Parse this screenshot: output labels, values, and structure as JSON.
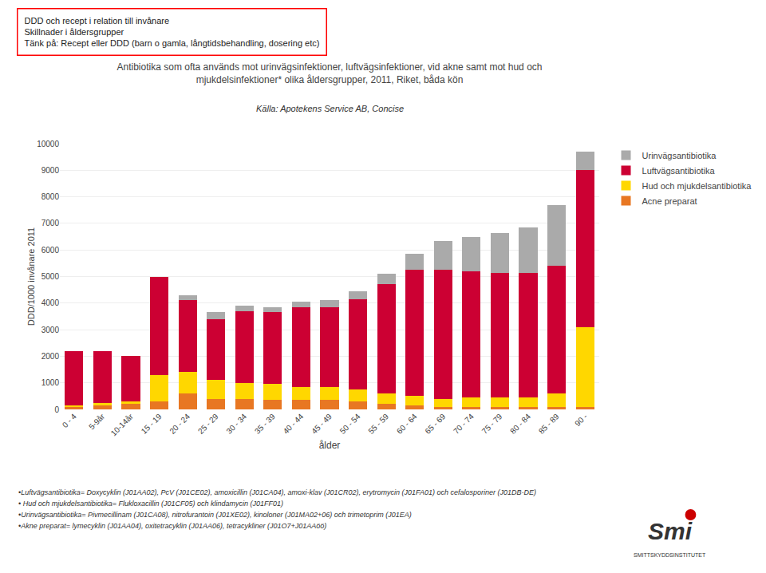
{
  "chart_data": {
    "type": "bar",
    "stacked": true,
    "title": [
      "Antibiotika som ofta används mot urinvägsinfektioner, luftvägsinfektioner, vid akne samt mot hud och",
      "mjukdelsinfektioner* olika åldersgrupper, 2011, Riket, båda kön"
    ],
    "subtitle": "Källa: Apotekens Service AB, Concise",
    "xlabel": "ålder",
    "ylabel": "DDD/1000 invånare 2011",
    "categories": [
      "0 - 4",
      "5-9år",
      "10-14år",
      "15 - 19",
      "20 - 24",
      "25 - 29",
      "30 - 34",
      "35 - 39",
      "40 - 44",
      "45 - 49",
      "50 - 54",
      "55 - 59",
      "60 - 64",
      "65 - 69",
      "70 - 74",
      "75 - 79",
      "80 - 84",
      "85 - 89",
      "90 -"
    ],
    "series": [
      {
        "name": "Acne preparat",
        "color": "#E87722",
        "values": [
          100,
          150,
          200,
          300,
          600,
          400,
          400,
          350,
          350,
          350,
          300,
          200,
          150,
          100,
          100,
          100,
          100,
          100,
          100
        ]
      },
      {
        "name": "Hud och mjukdelsantibiotika",
        "color": "#FFD700",
        "values": [
          50,
          100,
          100,
          1000,
          800,
          700,
          600,
          600,
          500,
          500,
          450,
          400,
          350,
          300,
          350,
          350,
          350,
          500,
          3000
        ]
      },
      {
        "name": "Luftvägsantibiotika",
        "color": "#CC0033",
        "values": [
          2050,
          1950,
          1700,
          3700,
          2700,
          2300,
          2700,
          2700,
          3000,
          3000,
          3400,
          4100,
          4750,
          4850,
          4750,
          4700,
          4700,
          4800,
          5900
        ]
      },
      {
        "name": "Urinvägsantibiotika",
        "color": "#AAAAAA",
        "values": [
          0,
          0,
          0,
          0,
          200,
          250,
          200,
          200,
          200,
          250,
          300,
          400,
          600,
          1100,
          1300,
          1500,
          1700,
          2300,
          700
        ]
      }
    ],
    "ylim": [
      0,
      10000
    ],
    "yticks": [
      0,
      1000,
      2000,
      3000,
      4000,
      5000,
      6000,
      7000,
      8000,
      9000,
      10000
    ],
    "grid": true,
    "legend": "upper right",
    "annotations": [
      "DDD och recept i relation till invånare",
      "Skillnader i åldersgrupper",
      "Tänk på: Recept eller DDD (barn o gamla, långtidsbehandling, dosering etc)",
      "•Luftvägsantibiotika= Doxycyklin (J01AA02), PcV (J01CE02), amoxicillin (J01CA04), amoxi-klav (J01CR02), erytromycin (J01FA01) och cefalosporiner (J01DB-DE)",
      "• Hud och mjukdelsantibiotika= Flukloxacillin (J01CF05) och klindamycin (J01FF01)",
      "•Urinvägsantibiotika= Pivmecillinam (J01CA08), nitrofurantoin (J01XE02), kinoloner (J01MA02+06) och trimetoprim (J01EA)",
      "•Akne preparat= lymecyklin (J01AA04), oxitetracyklin (J01AA06), tetracykliner (J01O7+J01AAöö)",
      "Smi",
      "SMITTSKYDDSINSTITUTET"
    ]
  }
}
